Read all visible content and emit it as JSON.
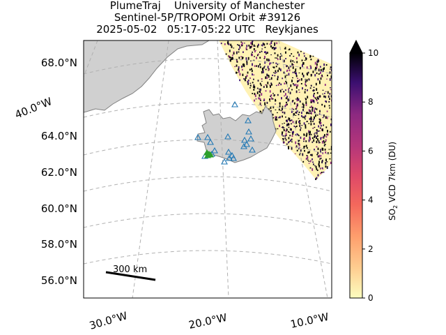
{
  "title": {
    "line1": "PlumeTraj    University of Manchester",
    "line2": "Sentinel-5P/TROPOMI Orbit #39126",
    "line3": "2025-05-02   05:17-05:22 UTC   Reykjanes"
  },
  "map": {
    "lat_labels": [
      "68.0°N",
      "64.0°N",
      "62.0°N",
      "60.0°N",
      "58.0°N",
      "56.0°N"
    ],
    "lon_labels_bottom": [
      "30.0°W",
      "20.0°W",
      "10.0°W"
    ],
    "lon_label_left": "40.0°W",
    "gridlines": true,
    "scale_bar_label": "300 km",
    "land_color": "#d0d0d0",
    "coast_color": "#808080",
    "volcano_marker_color": "#1f77b4",
    "active_volcano_color": "#2ca02c",
    "swath_color": "#fff2b4"
  },
  "colorbar": {
    "label_main": "SO",
    "label_sub": "2",
    "label_rest": " VCD 7km (DU)",
    "ticks": [
      "0",
      "2",
      "4",
      "6",
      "8",
      "10"
    ],
    "min": 0,
    "max": 10,
    "extend": "max",
    "colormap": "magma_r"
  }
}
